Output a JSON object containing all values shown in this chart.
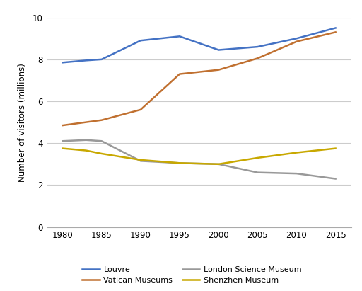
{
  "years": [
    1980,
    1983,
    1985,
    1990,
    1995,
    2000,
    2005,
    2010,
    2015
  ],
  "louvre": [
    7.85,
    7.95,
    8.0,
    8.9,
    9.1,
    8.45,
    8.6,
    9.0,
    9.5
  ],
  "vatican": [
    4.85,
    5.0,
    5.1,
    5.6,
    7.3,
    7.5,
    8.05,
    8.85,
    9.3
  ],
  "london_science": [
    4.1,
    4.15,
    4.1,
    3.15,
    3.05,
    3.0,
    2.6,
    2.55,
    2.3
  ],
  "shenzhen": [
    3.75,
    3.65,
    3.5,
    3.2,
    3.05,
    3.0,
    3.3,
    3.55,
    3.75
  ],
  "louvre_color": "#4472C4",
  "vatican_color": "#C07030",
  "london_science_color": "#999999",
  "shenzhen_color": "#C8A800",
  "ylabel": "Number of visitors (millions)",
  "ylim": [
    0,
    10
  ],
  "yticks": [
    0,
    2,
    4,
    6,
    8,
    10
  ],
  "xticks": [
    1980,
    1985,
    1990,
    1995,
    2000,
    2005,
    2010,
    2015
  ],
  "xlim": [
    1978,
    2017
  ],
  "legend_entries": [
    "Louvre",
    "Vatican Museums",
    "London Science Museum",
    "Shenzhen Museum"
  ],
  "background_color": "#ffffff",
  "grid_color": "#cccccc"
}
